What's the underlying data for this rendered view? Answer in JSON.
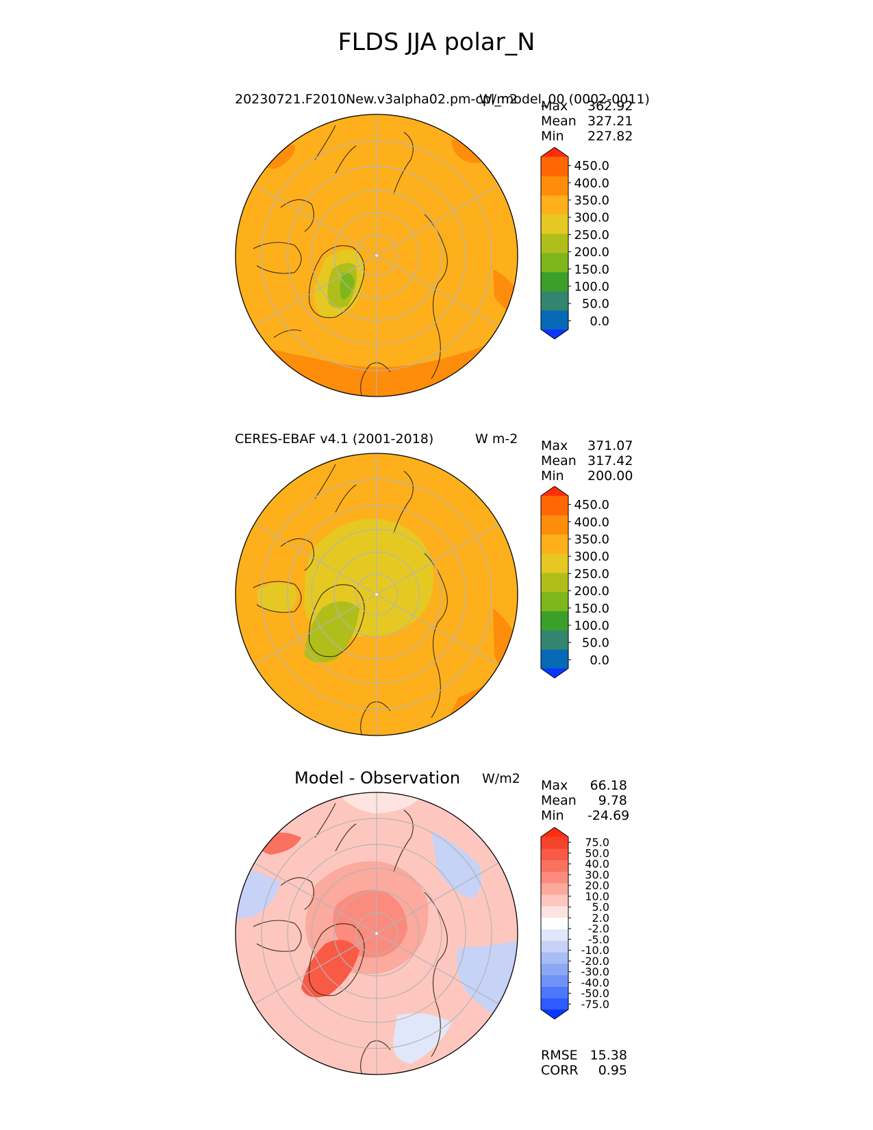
{
  "figure": {
    "suptitle": "FLDS JJA polar_N"
  },
  "colors": {
    "abs_levels": [
      "#0a37ff",
      "#0569b6",
      "#33856f",
      "#3ba02a",
      "#7db71b",
      "#b0be1c",
      "#e5c922",
      "#fdb01c",
      "#fe8d0b",
      "#fe6704",
      "#fe2f0c"
    ],
    "diff_levels": [
      "#0a37ff",
      "#2d5bff",
      "#4e78fb",
      "#6f92f8",
      "#8ca8f5",
      "#a9bdf5",
      "#c6d2f6",
      "#e1e7fa",
      "#ffffff",
      "#fde4e0",
      "#fdc7bf",
      "#fca99e",
      "#fb8c7d",
      "#f9715f",
      "#f85a45",
      "#f6422c",
      "#fe2f0c"
    ],
    "land_outline": "#3a2a12",
    "grid": "#b4b4b4"
  },
  "chart_data": [
    {
      "type": "heatmap",
      "projection": "north-polar-stereographic",
      "title_left": "20230721.F2010New.v3alpha02.pm-cpl_model_00 (0002-0011)",
      "title_right": "W/m2",
      "stats": {
        "max_label": "Max",
        "max": "362.92",
        "mean_label": "Mean",
        "mean": "327.21",
        "min_label": "Min",
        "min": "227.82"
      },
      "colorbar": {
        "levels": [
          "0.0",
          "50.0",
          "100.0",
          "150.0",
          "200.0",
          "250.0",
          "300.0",
          "350.0",
          "400.0",
          "450.0"
        ],
        "extend": "both"
      },
      "field": {
        "background_level": 350,
        "description_regions": [
          "Greenland interior 150-250",
          "Arctic ocean ~300-350",
          "low-latitude ring 350-400"
        ]
      }
    },
    {
      "type": "heatmap",
      "projection": "north-polar-stereographic",
      "title_left": "CERES-EBAF v4.1 (2001-2018)",
      "title_right": "W m-2",
      "stats": {
        "max_label": "Max",
        "max": "371.07",
        "mean_label": "Mean",
        "mean": "317.42",
        "min_label": "Min",
        "min": "200.00"
      },
      "colorbar": {
        "levels": [
          "0.0",
          "50.0",
          "100.0",
          "150.0",
          "200.0",
          "250.0",
          "300.0",
          "350.0",
          "400.0",
          "450.0"
        ],
        "extend": "both"
      }
    },
    {
      "type": "heatmap",
      "projection": "north-polar-stereographic",
      "title_center": "Model - Observation",
      "title_right": "W/m2",
      "stats": {
        "max_label": "Max",
        "max": "66.18",
        "mean_label": "Mean",
        "mean": "9.78",
        "min_label": "Min",
        "min": "-24.69"
      },
      "colorbar": {
        "levels": [
          "-75.0",
          "-50.0",
          "-40.0",
          "-30.0",
          "-20.0",
          "-10.0",
          "-5.0",
          "-2.0",
          "2.0",
          "5.0",
          "10.0",
          "20.0",
          "30.0",
          "40.0",
          "50.0",
          "75.0"
        ],
        "extend": "both"
      },
      "metrics": {
        "rmse_label": "RMSE",
        "rmse": "15.38",
        "corr_label": "CORR",
        "corr": "0.95"
      }
    }
  ]
}
